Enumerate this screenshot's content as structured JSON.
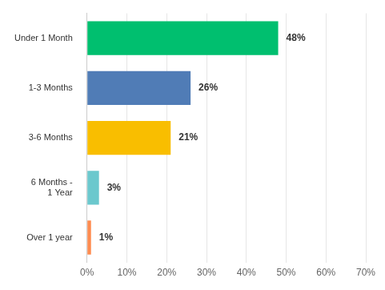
{
  "chart_data": {
    "type": "bar",
    "orientation": "horizontal",
    "categories": [
      "Under 1 Month",
      "1-3 Months",
      "3-6 Months",
      [
        "6 Months -",
        "1 Year"
      ],
      "Over 1 year"
    ],
    "values": [
      48,
      26,
      21,
      3,
      1
    ],
    "value_labels": [
      "48%",
      "26%",
      "21%",
      "3%",
      "1%"
    ],
    "colors": [
      "#00bf6f",
      "#507cb6",
      "#f9be00",
      "#6bc8cd",
      "#ff8b4f"
    ],
    "xlim": [
      0,
      70
    ],
    "xticks": [
      {
        "value": 0,
        "label": "0%"
      },
      {
        "value": 10,
        "label": "10%"
      },
      {
        "value": 20,
        "label": "20%"
      },
      {
        "value": 30,
        "label": "30%"
      },
      {
        "value": 40,
        "label": "40%"
      },
      {
        "value": 50,
        "label": "50%"
      },
      {
        "value": 60,
        "label": "60%"
      },
      {
        "value": 70,
        "label": "70%"
      }
    ],
    "grid": true,
    "data_labels": true
  }
}
